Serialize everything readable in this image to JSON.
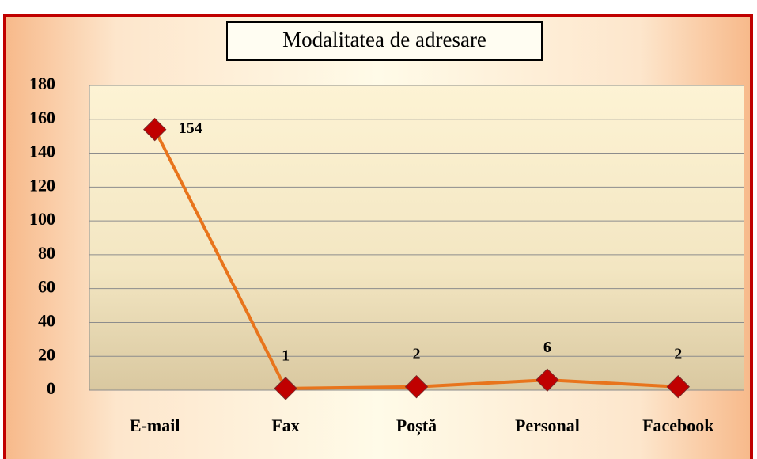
{
  "chart_data": {
    "type": "line",
    "title": "Modalitatea de adresare",
    "categories": [
      "E-mail",
      "Fax",
      "Poștă",
      "Personal",
      "Facebook"
    ],
    "values": [
      154,
      1,
      2,
      6,
      2
    ],
    "color": "#e8741c",
    "marker_color": "#c00000",
    "ylim": [
      0,
      180
    ],
    "yticks": [
      0,
      20,
      40,
      60,
      80,
      100,
      120,
      140,
      160,
      180
    ],
    "grid": true
  }
}
